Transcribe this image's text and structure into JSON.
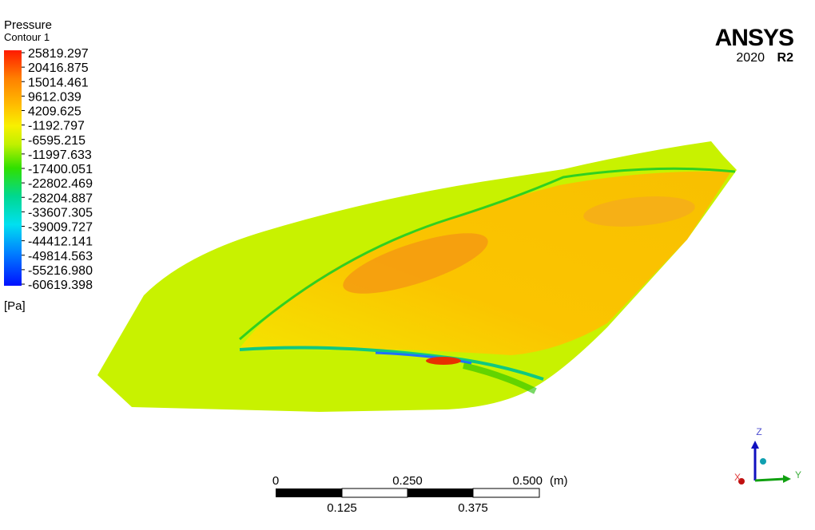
{
  "legend": {
    "title": "Pressure",
    "subtitle": "Contour 1",
    "levels": [
      "25819.297",
      "20416.875",
      "15014.461",
      "9612.039",
      "4209.625",
      "-1192.797",
      "-6595.215",
      "-11997.633",
      "-17400.051",
      "-22802.469",
      "-28204.887",
      "-33607.305",
      "-39009.727",
      "-44412.141",
      "-49814.563",
      "-55216.980",
      "-60619.398"
    ],
    "unit": "[Pa]"
  },
  "logo": {
    "brand": "ANSYS",
    "version": "2020",
    "release": "R2"
  },
  "scale": {
    "labels_top": [
      "0",
      "0.250",
      "0.500"
    ],
    "unit": "(m)",
    "labels_bottom": [
      "0.125",
      "0.375"
    ]
  },
  "triad": {
    "z": "Z",
    "y": "Y",
    "x": "X"
  }
}
